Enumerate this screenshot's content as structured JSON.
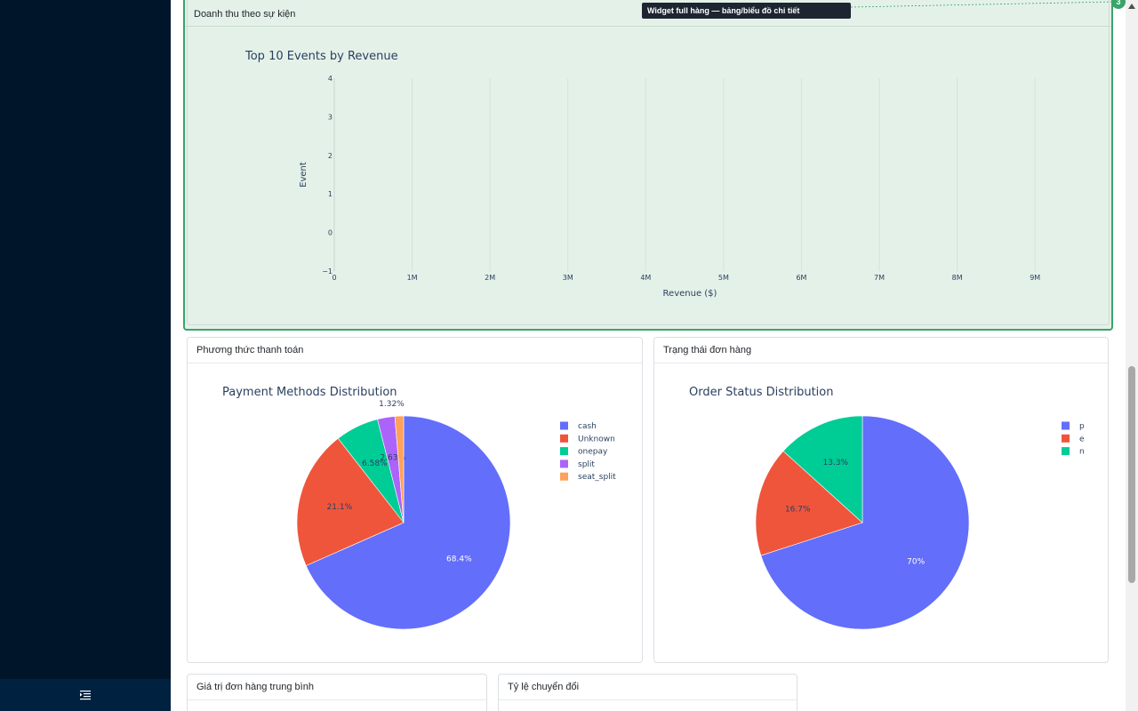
{
  "widgets": {
    "revenue_by_event": {
      "header": "Doanh thu theo sự kiện"
    },
    "payment_methods": {
      "header": "Phương thức thanh toán"
    },
    "order_status": {
      "header": "Trạng thái đơn hàng"
    },
    "avg_order_value": {
      "header": "Giá trị đơn hàng trung bình"
    },
    "conversion_rate": {
      "header": "Tỷ lệ chuyển đổi"
    }
  },
  "overlay": {
    "tooltip": "Widget full hàng — bảng/biểu đồ chi tiết",
    "badge": "3"
  },
  "colors": {
    "sidebar": "#00152a",
    "highlight_border": "#3aa36a",
    "highlight_bg": "#e4f1e9"
  },
  "icons": {
    "sidebar_toggle": "collapse-menu-icon",
    "scroll_up": "triangle-up-icon"
  },
  "chart_data": [
    {
      "type": "bar",
      "orientation": "horizontal",
      "title": "Top 10 Events by Revenue",
      "xlabel": "Revenue ($)",
      "ylabel": "Event",
      "x_ticks": [
        "0",
        "1M",
        "2M",
        "3M",
        "4M",
        "5M",
        "6M",
        "7M",
        "8M",
        "9M"
      ],
      "y_ticks": [
        "4",
        "3",
        "2",
        "1",
        "0",
        "−1"
      ],
      "xlim": [
        0,
        9500000
      ],
      "ylim": [
        -1,
        4
      ],
      "categories": [],
      "values": [],
      "grid": true
    },
    {
      "type": "pie",
      "title": "Payment Methods Distribution",
      "labels": [
        "cash",
        "Unknown",
        "onepay",
        "split",
        "seat_split"
      ],
      "values": [
        68.4,
        21.1,
        6.58,
        2.63,
        1.32
      ],
      "value_labels": [
        "68.4%",
        "21.1%",
        "6.58%",
        "2.63%",
        "1.32%"
      ],
      "colors": [
        "#636efa",
        "#ef553b",
        "#00cc96",
        "#ab63fa",
        "#ffa15a"
      ],
      "legend": "top-right"
    },
    {
      "type": "pie",
      "title": "Order Status Distribution",
      "labels": [
        "p",
        "e",
        "n"
      ],
      "values": [
        70,
        16.7,
        13.3
      ],
      "value_labels": [
        "70%",
        "16.7%",
        "13.3%"
      ],
      "colors": [
        "#636efa",
        "#ef553b",
        "#00cc96"
      ],
      "legend": "top-right"
    }
  ]
}
